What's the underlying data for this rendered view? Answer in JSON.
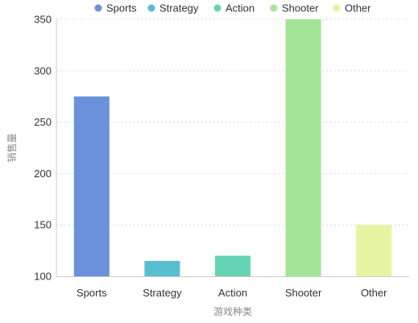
{
  "chart_data": {
    "type": "bar",
    "categories": [
      "Sports",
      "Strategy",
      "Action",
      "Shooter",
      "Other"
    ],
    "series": [
      {
        "values": [
          275,
          115,
          120,
          350,
          150
        ]
      }
    ],
    "xlabel": "游戏种类",
    "ylabel": "销售量",
    "ylim": [
      100,
      350
    ],
    "yticks": [
      100,
      150,
      200,
      250,
      300,
      350
    ],
    "grid": true,
    "legend": {
      "position": "top",
      "items": [
        "Sports",
        "Strategy",
        "Action",
        "Shooter",
        "Other"
      ]
    },
    "colors": [
      "#6a91d9",
      "#57bfcf",
      "#66d4b4",
      "#a2e496",
      "#e6f4a1"
    ]
  }
}
